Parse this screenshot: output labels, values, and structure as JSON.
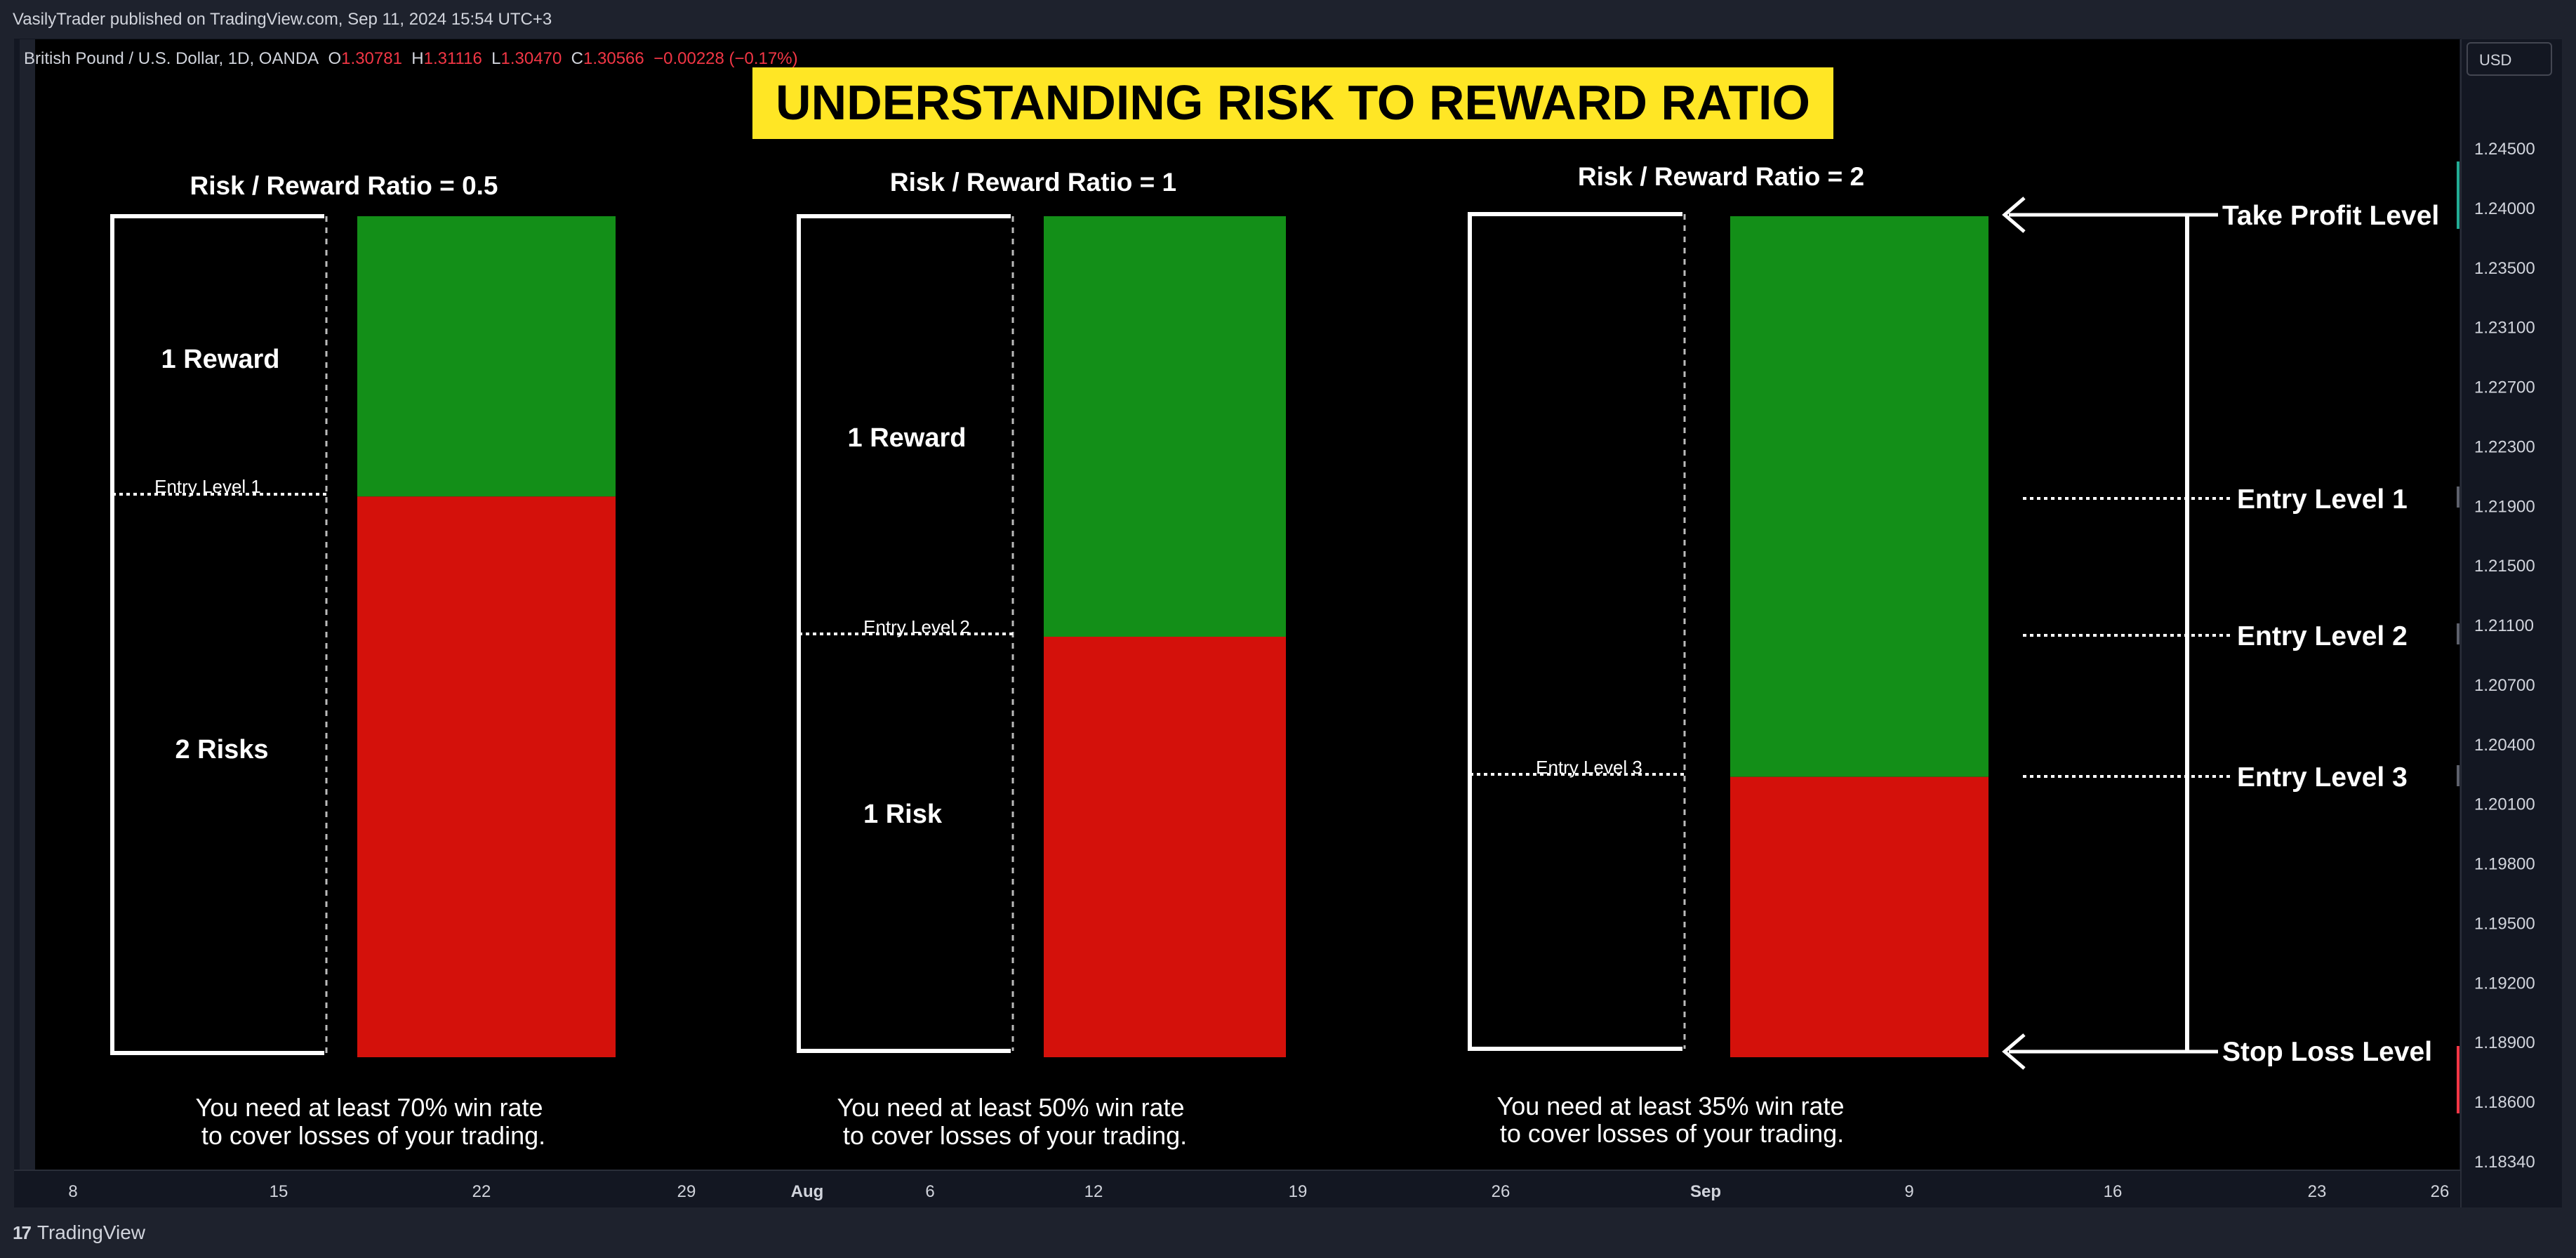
{
  "header": {
    "published_by": "VasilyTrader published on TradingView.com, Sep 11, 2024 15:54 UTC+3"
  },
  "legend": {
    "symbol": "British Pound / U.S. Dollar, 1D, OANDA",
    "o_label": "O",
    "o_value": "1.30781",
    "h_label": "H",
    "h_value": "1.31116",
    "l_label": "L",
    "l_value": "1.30470",
    "c_label": "C",
    "c_value": "1.30566",
    "change": "−0.00228 (−0.17%)"
  },
  "currency_button": "USD",
  "footer": {
    "brand": "TradingView",
    "logo_glyph": "17"
  },
  "colors": {
    "reward": "#138f18",
    "risk": "#d4110b",
    "banner": "#ffe625",
    "background": "#000000"
  },
  "chart_data": {
    "type": "annotated-price-chart",
    "title": "UNDERSTANDING RISK TO REWARD RATIO",
    "y_axis": {
      "ticks": [
        "1.24500",
        "1.24000",
        "1.23500",
        "1.23100",
        "1.22700",
        "1.22300",
        "1.21900",
        "1.21500",
        "1.21100",
        "1.20700",
        "1.20400",
        "1.20100",
        "1.19800",
        "1.19500",
        "1.19200",
        "1.18900",
        "1.18600",
        "1.18340"
      ],
      "range": [
        1.1834,
        1.2456
      ]
    },
    "x_axis": {
      "ticks": [
        "8",
        "15",
        "22",
        "29",
        "Aug",
        "6",
        "12",
        "19",
        "26",
        "Sep",
        "9",
        "16",
        "23",
        "26"
      ]
    },
    "panels": [
      {
        "heading": "Risk / Reward Ratio = 0.5",
        "reward_label": "1 Reward",
        "risk_label": "2 Risks",
        "entry_label": "Entry Level 1",
        "reward_units": 1,
        "risk_units": 2,
        "footnote_line1": "You need at least 70% win rate",
        "footnote_line2": "to cover losses of your trading."
      },
      {
        "heading": "Risk / Reward Ratio = 1",
        "reward_label": "1 Reward",
        "risk_label": "1 Risk",
        "entry_label": "Entry Level 2",
        "reward_units": 1,
        "risk_units": 1,
        "footnote_line1": "You need at least 50% win rate",
        "footnote_line2": "to cover losses of your trading."
      },
      {
        "heading": "Risk / Reward Ratio = 2",
        "reward_label": "",
        "risk_label": "",
        "entry_label": "Entry Level 3",
        "reward_units": 2,
        "risk_units": 1,
        "footnote_line1": "You need at least 35% win rate",
        "footnote_line2": "to cover losses of your trading."
      }
    ],
    "side_labels": {
      "take_profit": "Take Profit Level",
      "entry1": "Entry Level 1",
      "entry2": "Entry Level 2",
      "entry3": "Entry Level 3",
      "stop_loss": "Stop Loss Level"
    }
  }
}
